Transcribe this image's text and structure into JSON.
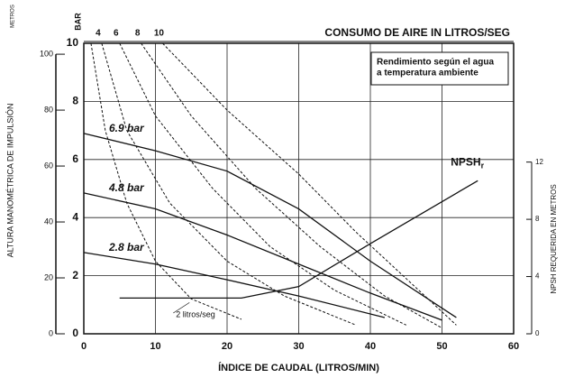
{
  "chart_data": {
    "type": "line",
    "title": "CONSUMO DE AIRE IN LITROS/SEG",
    "note": [
      "Rendimiento según el agua",
      "a temperatura ambiente"
    ],
    "xlabel": "ÍNDICE DE CAUDAL (LITROS/MIN)",
    "ylabel": "BAR",
    "y_outer_label": "ALTURA MANOMÉTRICA DE IMPULSIÓN",
    "y_outer_unit": "METROS",
    "y2label": "NPSH REQUERIDA EN METROS",
    "xlim": [
      0,
      60
    ],
    "xticks": [
      0,
      10,
      20,
      30,
      40,
      50,
      60
    ],
    "ylim": [
      0,
      10
    ],
    "yticks": [
      0,
      2,
      4,
      6,
      8,
      10
    ],
    "y_outer_lim": [
      0,
      103.9
    ],
    "y_outer_ticks": [
      0,
      20,
      40,
      60,
      80,
      100
    ],
    "y2lim": [
      0,
      20.3
    ],
    "y2ticks": [
      0,
      4,
      8,
      12
    ],
    "grid": true,
    "series": [
      {
        "name": "6.9 bar",
        "color": "#111111",
        "x": [
          0,
          10,
          20,
          30,
          40,
          52
        ],
        "values": [
          6.9,
          6.3,
          5.6,
          4.3,
          2.5,
          0.56
        ]
      },
      {
        "name": "4.8 bar",
        "color": "#111111",
        "x": [
          0,
          10,
          20,
          30,
          40,
          50
        ],
        "values": [
          4.85,
          4.3,
          3.4,
          2.4,
          1.4,
          0.47
        ]
      },
      {
        "name": "2.8 bar",
        "color": "#111111",
        "x": [
          0,
          10,
          20,
          30,
          42
        ],
        "values": [
          2.8,
          2.4,
          1.86,
          1.3,
          0.56
        ]
      },
      {
        "name": "NPSH",
        "subscript": "r",
        "color": "#111111",
        "axis": "y2",
        "x": [
          5,
          22,
          30,
          40,
          55
        ],
        "values": [
          2.5,
          2.5,
          3.3,
          6.3,
          10.7
        ]
      }
    ],
    "air_series": [
      {
        "name": "2 litros/seg",
        "color": "#111111",
        "x": [
          1,
          3,
          6,
          10,
          15,
          22
        ],
        "values": [
          10,
          7,
          4.5,
          2.5,
          1.2,
          0.5
        ]
      },
      {
        "name": "4",
        "color": "#111111",
        "x": [
          2.5,
          6,
          12,
          20,
          28,
          38
        ],
        "values": [
          10,
          7,
          4.5,
          2.5,
          1.3,
          0.3
        ]
      },
      {
        "name": "6",
        "color": "#111111",
        "x": [
          5,
          10,
          18,
          26,
          35,
          45
        ],
        "values": [
          10,
          7.5,
          5,
          3,
          1.5,
          0.3
        ]
      },
      {
        "name": "8",
        "color": "#111111",
        "x": [
          8,
          15,
          24,
          33,
          42,
          50
        ],
        "values": [
          10,
          7.5,
          5,
          3,
          1.3,
          0.2
        ]
      },
      {
        "name": "10",
        "color": "#111111",
        "x": [
          11,
          20,
          30,
          38,
          45,
          52
        ],
        "values": [
          10,
          7.7,
          5.5,
          3.5,
          1.9,
          0.3
        ]
      }
    ]
  }
}
